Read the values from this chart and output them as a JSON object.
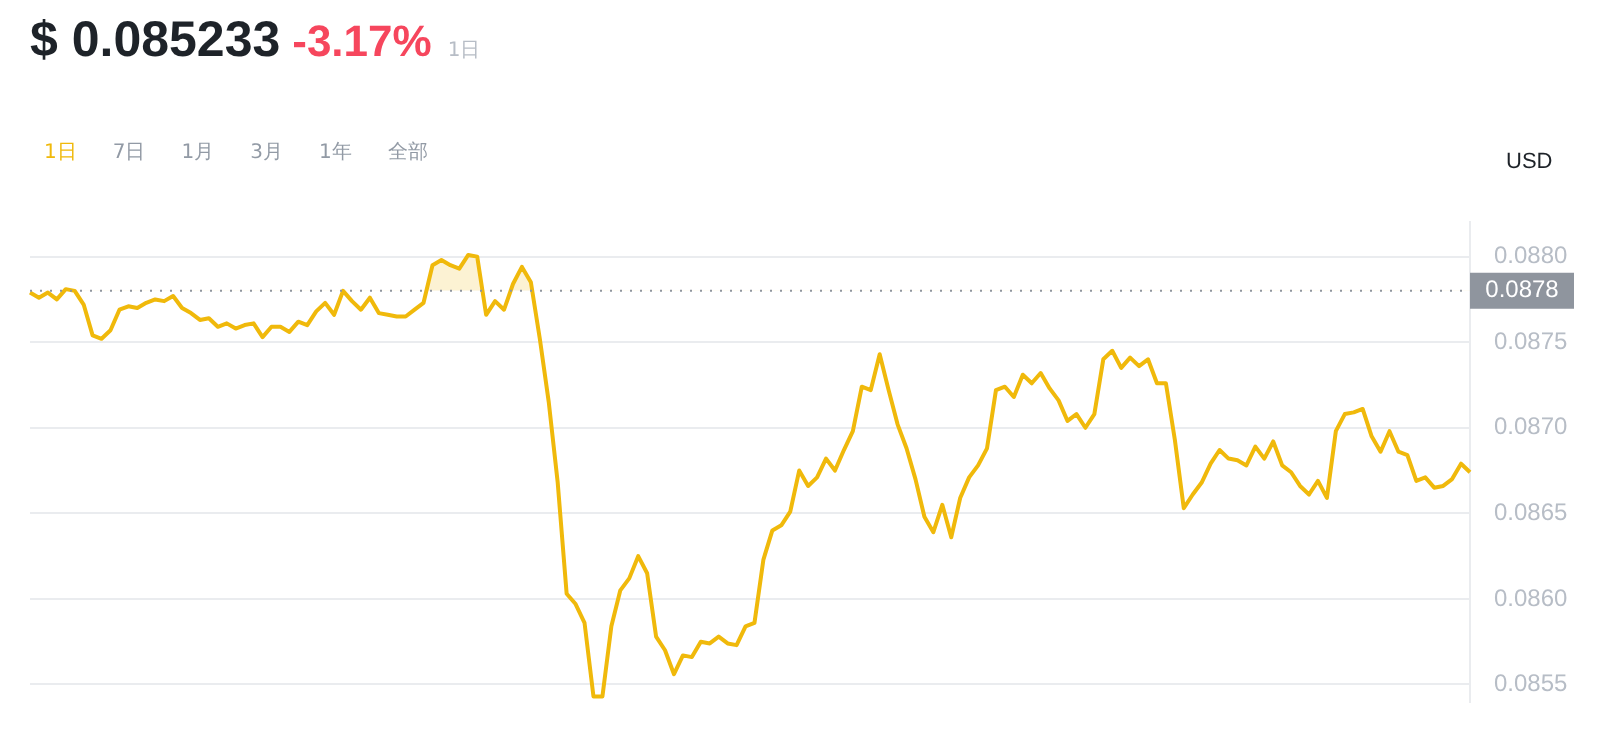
{
  "chart_data": {
    "type": "line",
    "title": "$ 0.085233",
    "subtitle": "-3.17%",
    "ylabel": "USD",
    "annotations": [
      "1日",
      "1日",
      "7日",
      "1月",
      "3月",
      "1年",
      "全部"
    ],
    "categories": [
      null,
      null,
      null,
      null,
      null,
      null,
      null,
      null,
      null,
      null,
      null,
      null,
      null,
      null,
      null,
      null,
      null,
      null,
      null,
      null,
      null,
      null,
      null,
      null,
      null,
      null,
      null,
      null,
      null,
      null,
      null,
      null,
      null,
      null,
      null,
      null,
      null,
      null,
      null,
      null,
      null,
      null,
      null,
      null,
      null,
      null,
      null,
      null,
      null,
      null,
      null,
      null,
      null,
      null,
      null,
      null,
      null,
      null,
      null,
      null,
      null,
      null,
      null,
      null,
      null,
      null,
      null,
      null,
      null,
      null,
      null,
      null,
      null,
      null,
      null,
      null,
      null,
      null,
      null,
      null,
      null,
      null,
      null,
      null,
      null,
      null,
      null,
      null,
      null,
      null,
      null,
      null,
      null,
      null,
      null,
      null,
      null,
      null,
      null,
      null,
      null,
      null,
      null,
      null,
      null,
      null,
      null,
      null,
      null,
      null,
      null,
      null,
      null,
      null,
      null,
      null,
      null,
      null,
      null,
      null,
      null,
      null,
      null,
      null,
      null,
      null,
      null,
      null,
      null,
      null,
      null,
      null,
      null,
      null,
      null,
      null,
      null,
      null,
      null,
      null,
      null,
      null,
      null,
      null,
      null,
      null,
      null,
      null,
      null,
      null,
      null,
      null,
      null,
      null,
      null,
      null,
      null,
      null,
      null,
      null,
      null,
      null
    ],
    "series": [
      {
        "color": "#f0b90b",
        "values": [
          0.08779,
          0.08776,
          0.08779,
          0.08775,
          0.08781,
          0.0878,
          0.08772,
          0.08754,
          0.08752,
          0.08757,
          0.08769,
          0.08771,
          0.0877,
          0.08773,
          0.08775,
          0.08774,
          0.08777,
          0.0877,
          0.08767,
          0.08763,
          0.08764,
          0.08759,
          0.08761,
          0.08758,
          0.0876,
          0.08761,
          0.08753,
          0.08759,
          0.08759,
          0.08756,
          0.08762,
          0.0876,
          0.08768,
          0.08773,
          0.08766,
          0.0878,
          0.08774,
          0.08769,
          0.08776,
          0.08767,
          0.08766,
          0.08765,
          0.08765,
          0.08769,
          0.08773,
          0.08795,
          0.08798,
          0.08795,
          0.08793,
          0.08801,
          0.088,
          0.08766,
          0.08774,
          0.08769,
          0.08784,
          0.08794,
          0.08785,
          0.08752,
          0.08715,
          0.08668,
          0.08603,
          0.08597,
          0.08586,
          0.08543,
          0.08543,
          0.08584,
          0.08605,
          0.08612,
          0.08625,
          0.08615,
          0.08578,
          0.0857,
          0.08556,
          0.08567,
          0.08566,
          0.08575,
          0.08574,
          0.08578,
          0.08574,
          0.08573,
          0.08584,
          0.08586,
          0.08623,
          0.0864,
          0.08643,
          0.08651,
          0.08675,
          0.08666,
          0.08671,
          0.08682,
          0.08675,
          0.08687,
          0.08698,
          0.08724,
          0.08722,
          0.08743,
          0.08722,
          0.08702,
          0.08688,
          0.0867,
          0.08648,
          0.08639,
          0.08655,
          0.08636,
          0.08659,
          0.08671,
          0.08678,
          0.08688,
          0.08722,
          0.08724,
          0.08718,
          0.08731,
          0.08726,
          0.08732,
          0.08723,
          0.08716,
          0.08704,
          0.08708,
          0.087,
          0.08708,
          0.0874,
          0.08745,
          0.08735,
          0.08741,
          0.08736,
          0.0874,
          0.08726,
          0.08726,
          0.08693,
          0.08653,
          0.08661,
          0.08668,
          0.08679,
          0.08687,
          0.08682,
          0.08681,
          0.08678,
          0.08689,
          0.08682,
          0.08692,
          0.08678,
          0.08674,
          0.08666,
          0.08661,
          0.08669,
          0.08659,
          0.08698,
          0.08708,
          0.08709,
          0.08711,
          0.08695,
          0.08686,
          0.08698,
          0.08686,
          0.08684,
          0.08669,
          0.08671,
          0.08665,
          0.08666,
          0.0867,
          0.08679,
          0.08674
        ]
      }
    ],
    "ylim": [
      0.0854,
      0.0882
    ],
    "yticks": [
      {
        "value": 0.0855,
        "label": "0.0855"
      },
      {
        "value": 0.086,
        "label": "0.0860"
      },
      {
        "value": 0.0865,
        "label": "0.0865"
      },
      {
        "value": 0.087,
        "label": "0.0870"
      },
      {
        "value": 0.0875,
        "label": "0.0875"
      },
      {
        "value": 0.088,
        "label": "0.0880"
      }
    ],
    "ref_lines": [
      {
        "axis": "y",
        "value": 0.0878,
        "label": "0.0878",
        "color": "#8f959e",
        "line_style": "dotted"
      }
    ],
    "grid": "y",
    "legend": false,
    "marker": "none",
    "line_style": "solid"
  }
}
